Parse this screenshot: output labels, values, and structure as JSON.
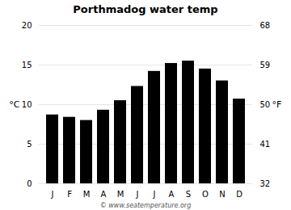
{
  "chart_data": {
    "type": "bar",
    "title": "Porthmadog water temp",
    "categories": [
      "J",
      "F",
      "M",
      "A",
      "M",
      "J",
      "J",
      "A",
      "S",
      "O",
      "N",
      "D"
    ],
    "values": [
      8.7,
      8.4,
      8.0,
      9.3,
      10.5,
      12.3,
      14.2,
      15.2,
      15.5,
      14.5,
      13.0,
      10.7
    ],
    "ylim": [
      0,
      20
    ],
    "yticks": [
      0,
      5,
      10,
      15,
      20
    ],
    "ylabel": "°C",
    "y2lim": [
      32,
      68
    ],
    "y2ticks": [
      32,
      41,
      50,
      59,
      68
    ],
    "y2label": "°F",
    "annotation": "© www.seatemperature.org",
    "grid": true
  }
}
